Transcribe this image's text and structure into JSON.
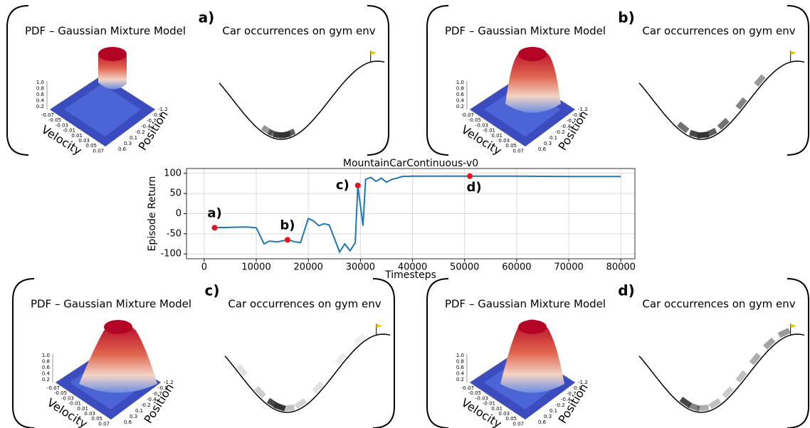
{
  "chart_data": {
    "type": "line",
    "title": "MountainCarContinuous-v0",
    "x_label": "Timesteps",
    "y_label": "Episode Return",
    "x": [
      2000,
      5000,
      8000,
      10000,
      11500,
      12500,
      14000,
      16000,
      17500,
      18500,
      20000,
      21000,
      22000,
      23000,
      24000,
      26000,
      27000,
      28000,
      29000,
      29500,
      30500,
      31000,
      32000,
      33000,
      34000,
      35000,
      36000,
      37000,
      38000,
      40000,
      50000,
      60000,
      70000,
      80000
    ],
    "series": [
      {
        "color": "#1f77b4",
        "values": [
          -35,
          -34,
          -33,
          -35,
          -75,
          -68,
          -70,
          -65,
          -70,
          -72,
          -12,
          -18,
          -30,
          -25,
          -28,
          -95,
          -75,
          -92,
          -72,
          70,
          -30,
          85,
          90,
          80,
          88,
          78,
          85,
          88,
          92,
          93,
          93,
          93,
          92,
          92
        ]
      }
    ],
    "markers": [
      {
        "label": "a)",
        "x": 2000,
        "y": -35
      },
      {
        "label": "b)",
        "x": 16000,
        "y": -65
      },
      {
        "label": "c)",
        "x": 29500,
        "y": 70
      },
      {
        "label": "d)",
        "x": 51000,
        "y": 93
      }
    ],
    "marker_color": "#e8141b",
    "xlim": [
      -3400,
      82700
    ],
    "ylim": [
      -112,
      112
    ],
    "xticks": [
      0,
      10000,
      20000,
      30000,
      40000,
      50000,
      60000,
      70000,
      80000
    ],
    "yticks": [
      -100,
      -50,
      0,
      50,
      100
    ],
    "grid": true
  },
  "panels": [
    {
      "label": "a)",
      "pdf_title": "PDF – Gaussian Mixture Model",
      "env_title": "Car occurrences on gym env",
      "x_axis": "Velocity",
      "y_axis": "Position",
      "z_ticks": [
        "1.0",
        "0.8",
        "0.6",
        "0.4",
        "0.2"
      ],
      "velocity_ticks": [
        "-0.07",
        "-0.05",
        "-0.03",
        "-0.01",
        "0.01",
        "0.03",
        "0.05",
        "0.07"
      ],
      "position_ticks": [
        "-1.2",
        "-0.9",
        "-0.7",
        "-0.4",
        "-0.2",
        "0.1",
        "0.3",
        "0.6"
      ]
    },
    {
      "label": "b)",
      "pdf_title": "PDF – Gaussian Mixture Model",
      "env_title": "Car occurrences on gym env",
      "x_axis": "Velocity",
      "y_axis": "Position",
      "z_ticks": [
        "1.0",
        "0.8",
        "0.6",
        "0.4",
        "0.2"
      ],
      "velocity_ticks": [
        "-0.07",
        "-0.05",
        "-0.03",
        "-0.01",
        "0.01",
        "0.03",
        "0.05",
        "0.07"
      ],
      "position_ticks": [
        "-1.2",
        "-0.9",
        "-0.7",
        "-0.4",
        "-0.2",
        "0.1",
        "0.3",
        "0.6"
      ]
    },
    {
      "label": "c)",
      "pdf_title": "PDF – Gaussian Mixture Model",
      "env_title": "Car occurrences on gym env",
      "x_axis": "Velocity",
      "y_axis": "Position",
      "z_ticks": [
        "1.0",
        "0.8",
        "0.6",
        "0.4",
        "0.2"
      ],
      "velocity_ticks": [
        "-0.07",
        "-0.05",
        "-0.03",
        "-0.01",
        "0.01",
        "0.03",
        "0.05",
        "0.07"
      ],
      "position_ticks": [
        "-1.2",
        "-0.9",
        "-0.7",
        "-0.4",
        "-0.2",
        "0.1",
        "0.3",
        "0.6"
      ]
    },
    {
      "label": "d)",
      "pdf_title": "PDF – Gaussian Mixture Model",
      "env_title": "Car occurrences on gym env",
      "x_axis": "Velocity",
      "y_axis": "Position",
      "z_ticks": [
        "1.0",
        "0.8",
        "0.6",
        "0.4",
        "0.2"
      ],
      "velocity_ticks": [
        "-0.07",
        "-0.05",
        "-0.03",
        "-0.01",
        "0.01",
        "0.03",
        "0.05",
        "0.07"
      ],
      "position_ticks": [
        "-1.2",
        "-0.9",
        "-0.7",
        "-0.4",
        "-0.2",
        "0.1",
        "0.3",
        "0.6"
      ]
    }
  ]
}
